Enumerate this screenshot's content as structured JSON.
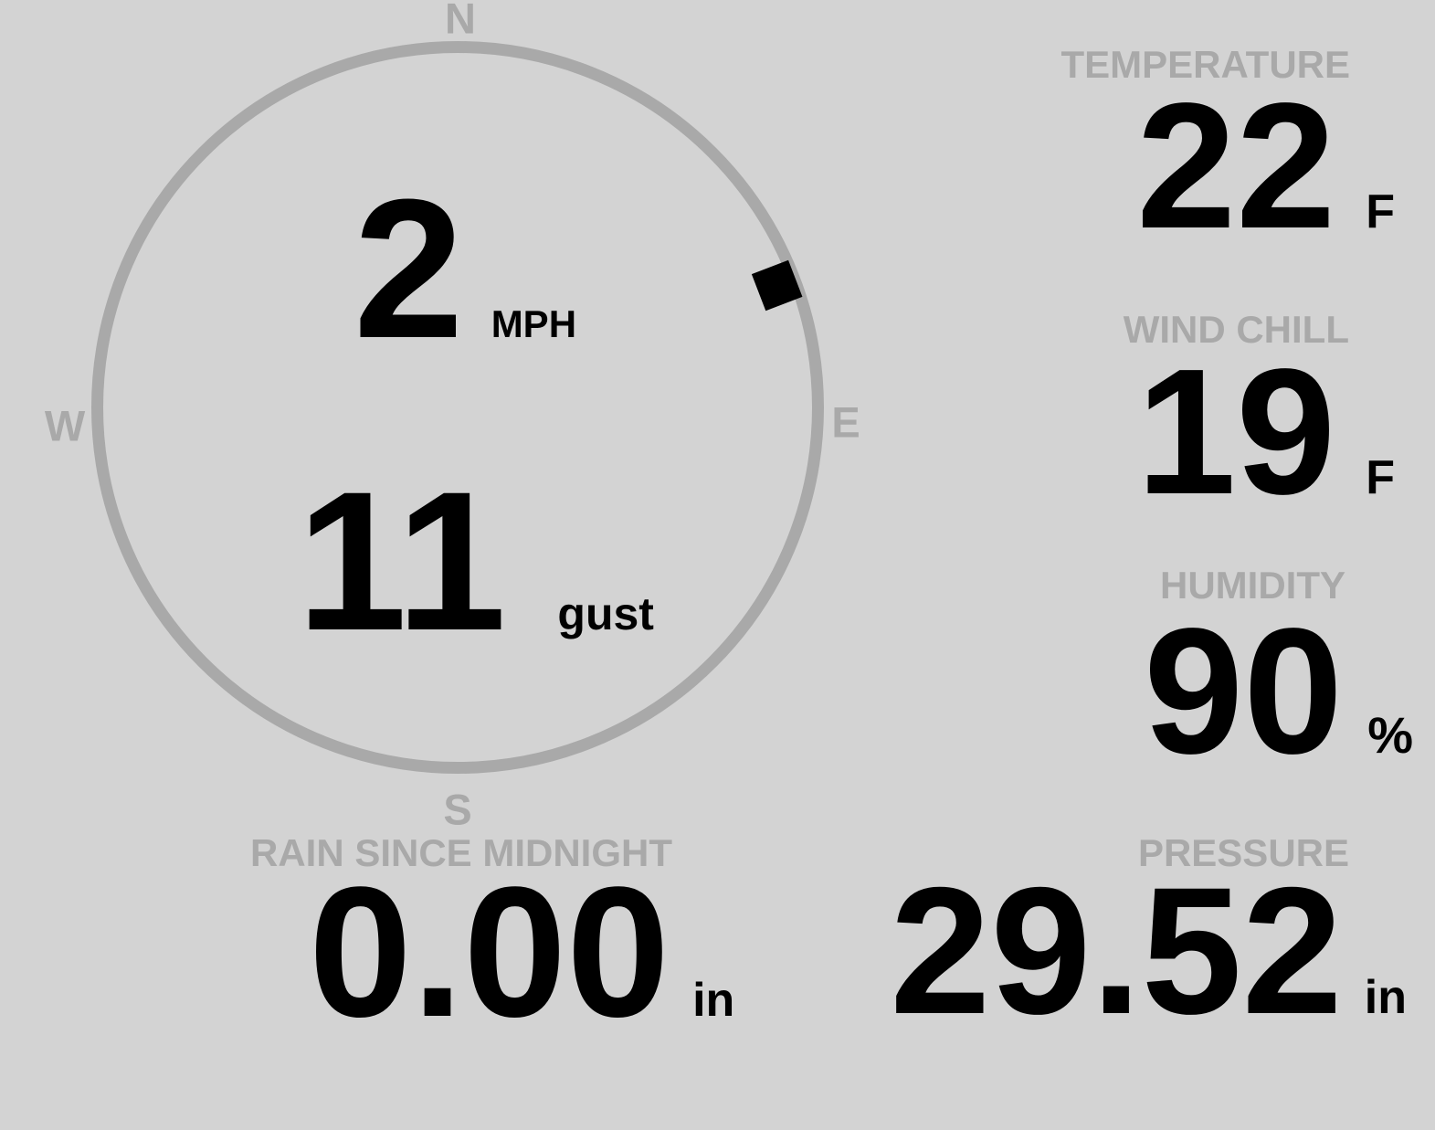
{
  "colors": {
    "background": "#d3d3d3",
    "muted": "#a9a9a9",
    "value": "#000000"
  },
  "compass": {
    "north_label": "N",
    "east_label": "E",
    "south_label": "S",
    "west_label": "W",
    "wind_direction_deg": 69,
    "wind_speed_value": "2",
    "wind_speed_unit": "MPH",
    "wind_gust_value": "11",
    "wind_gust_unit": "gust"
  },
  "metrics": {
    "temperature": {
      "label": "TEMPERATURE",
      "value": "22",
      "unit": "F"
    },
    "wind_chill": {
      "label": "WIND CHILL",
      "value": "19",
      "unit": "F"
    },
    "humidity": {
      "label": "HUMIDITY",
      "value": "90",
      "unit": "%"
    },
    "rain_since_midnight": {
      "label": "RAIN SINCE MIDNIGHT",
      "value": "0.00",
      "unit": "in"
    },
    "pressure": {
      "label": "PRESSURE",
      "value": "29.52",
      "unit": "in"
    }
  }
}
